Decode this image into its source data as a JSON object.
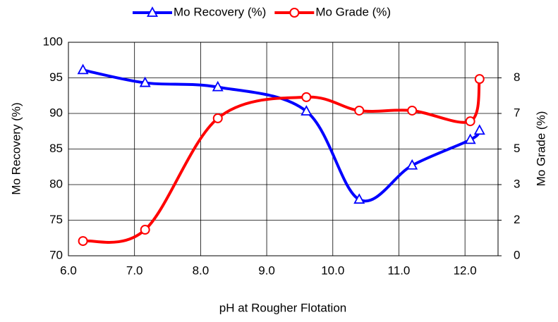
{
  "chart_data": {
    "type": "line",
    "x_label": "pH at Rougher Flotation",
    "y_label": "Mo Recovery (%)",
    "y2_label": "Mo Grade (%)",
    "x": [
      6.22,
      7.16,
      8.26,
      9.6,
      10.4,
      11.2,
      12.08,
      12.22
    ],
    "series": [
      {
        "name": "Mo Recovery (%)",
        "color": "#0000ff",
        "marker": "triangle",
        "values": [
          96.1,
          94.3,
          93.7,
          90.3,
          77.9,
          82.7,
          86.3,
          87.6
        ]
      },
      {
        "name": "Mo Grade (%)",
        "color": "#ff0000",
        "marker": "circle",
        "axis": "y2",
        "values": [
          0.69,
          1.22,
          6.44,
          7.43,
          6.8,
          6.8,
          6.3,
          8.28
        ]
      }
    ],
    "xlim": [
      6,
      12.5
    ],
    "xticks": [
      {
        "value": 6,
        "label": "6.0"
      },
      {
        "value": 7,
        "label": "7.0"
      },
      {
        "value": 8,
        "label": "8.0"
      },
      {
        "value": 9,
        "label": "9.0"
      },
      {
        "value": 10,
        "label": "10.0"
      },
      {
        "value": 11,
        "label": "11.0"
      },
      {
        "value": 12,
        "label": "12.0"
      }
    ],
    "ylim": [
      70,
      100
    ],
    "yticks": [
      70,
      75,
      80,
      85,
      90,
      95,
      100
    ],
    "y2lim": [
      0,
      10
    ],
    "y2ticks": [
      0,
      {
        "value": 1.667,
        "label": "2"
      },
      {
        "value": 3.333,
        "label": "3"
      },
      5,
      {
        "value": 6.667,
        "label": "7"
      },
      {
        "value": 8.333,
        "label": "8"
      }
    ],
    "grid": true,
    "legend": "top"
  }
}
